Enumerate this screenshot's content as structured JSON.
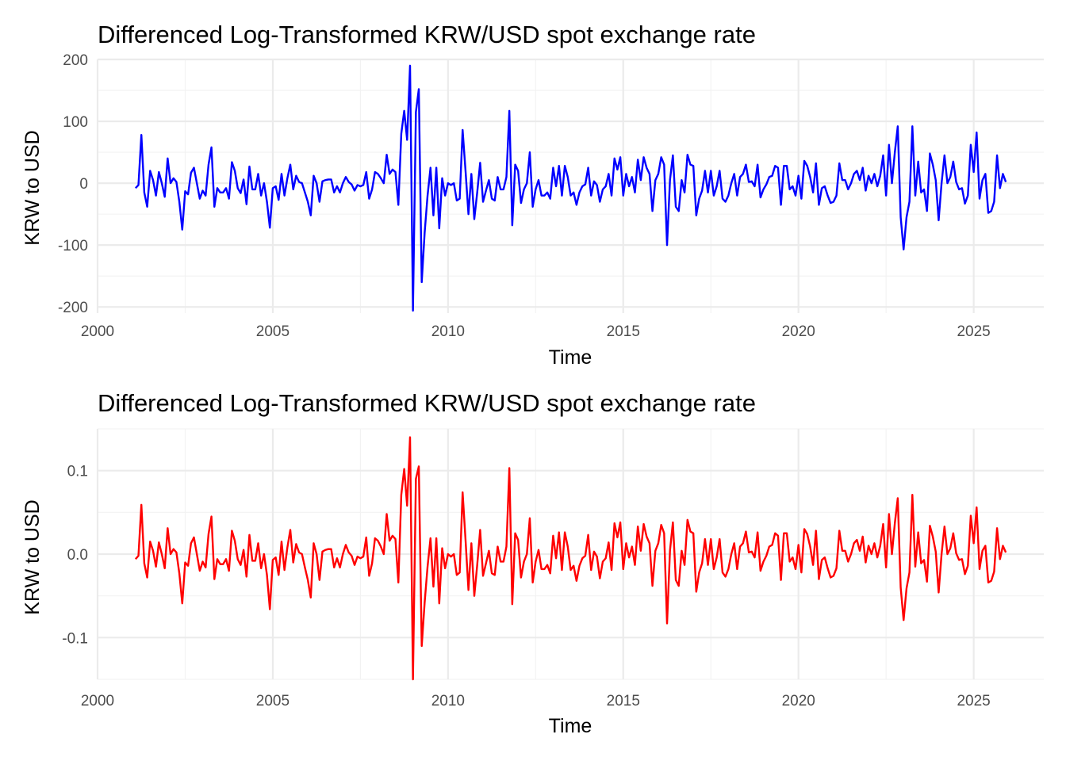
{
  "chart_data": [
    {
      "type": "line",
      "title": "Differenced Log-Transformed KRW/USD spot exchange rate",
      "xlabel": "Time",
      "ylabel": "KRW to USD",
      "xlim": [
        2000,
        2027
      ],
      "ylim": [
        -210,
        200
      ],
      "x_ticks": [
        2000,
        2005,
        2010,
        2015,
        2020,
        2025
      ],
      "x_tick_labels": [
        "2000",
        "2005",
        "2010",
        "2015",
        "2020",
        "2025"
      ],
      "y_ticks": [
        -200,
        -100,
        0,
        100,
        200
      ],
      "y_tick_labels": [
        "-200",
        "-100",
        "0",
        "100",
        "200"
      ],
      "y_minor_ticks": [
        -150,
        -50,
        50,
        150
      ],
      "x_minor_ticks": [
        2002.5,
        2007.5,
        2012.5,
        2017.5,
        2022.5
      ],
      "grid": true,
      "series": [
        {
          "color": "#0000ff",
          "x_start": 2001.0833,
          "x_step": 0.083333,
          "values": [
            -8,
            -3,
            78,
            -15,
            -38,
            20,
            5,
            -20,
            18,
            0,
            -22,
            40,
            0,
            8,
            2,
            -30,
            -75,
            -13,
            -18,
            17,
            25,
            0,
            -25,
            -12,
            -20,
            30,
            58,
            -38,
            -8,
            -15,
            -15,
            -8,
            -25,
            34,
            20,
            -8,
            -16,
            6,
            -34,
            27,
            -10,
            -10,
            15,
            -20,
            0,
            -30,
            -72,
            -8,
            -5,
            -27,
            15,
            -20,
            8,
            30,
            -10,
            12,
            2,
            0,
            -15,
            -30,
            -52,
            12,
            0,
            -30,
            3,
            5,
            6,
            6,
            -15,
            -5,
            -15,
            0,
            10,
            2,
            -2,
            -12,
            -3,
            -5,
            -3,
            18,
            -25,
            -10,
            18,
            15,
            8,
            0,
            46,
            15,
            22,
            18,
            -35,
            80,
            117,
            70,
            190,
            -206,
            115,
            152,
            -160,
            -80,
            -20,
            25,
            -52,
            25,
            -73,
            8,
            -20,
            0,
            -3,
            0,
            -28,
            -25,
            86,
            20,
            -50,
            15,
            -58,
            -15,
            33,
            -30,
            -12,
            5,
            -25,
            -28,
            10,
            -10,
            -10,
            10,
            117,
            -68,
            30,
            20,
            -32,
            -10,
            0,
            50,
            -38,
            -10,
            5,
            -20,
            -20,
            -15,
            -25,
            25,
            -5,
            28,
            -20,
            28,
            10,
            -20,
            -15,
            -35,
            -15,
            -5,
            -2,
            25,
            -20,
            3,
            -3,
            -30,
            -10,
            -5,
            15,
            -20,
            40,
            22,
            42,
            -20,
            15,
            -5,
            10,
            -15,
            38,
            5,
            42,
            25,
            15,
            -45,
            5,
            15,
            42,
            30,
            -100,
            5,
            45,
            -38,
            -45,
            5,
            -15,
            46,
            30,
            28,
            -52,
            -25,
            -12,
            20,
            -15,
            20,
            -20,
            -5,
            20,
            -25,
            -30,
            -20,
            0,
            15,
            -20,
            10,
            15,
            30,
            2,
            3,
            -5,
            30,
            -23,
            -10,
            -2,
            10,
            12,
            28,
            25,
            -35,
            28,
            28,
            -10,
            -5,
            -20,
            12,
            -25,
            36,
            28,
            10,
            -15,
            32,
            -35,
            -8,
            -5,
            -20,
            -32,
            -30,
            -20,
            32,
            5,
            5,
            -10,
            0,
            15,
            20,
            5,
            25,
            -12,
            12,
            0,
            15,
            -5,
            12,
            45,
            -20,
            62,
            0,
            50,
            92,
            -55,
            -107,
            -55,
            -30,
            92,
            -20,
            35,
            -15,
            -10,
            -45,
            48,
            30,
            5,
            -60,
            0,
            45,
            0,
            10,
            35,
            2,
            -10,
            -8,
            -33,
            -20,
            62,
            18,
            82,
            -25,
            5,
            15,
            -48,
            -45,
            -30,
            45,
            -8,
            15,
            2
          ]
        }
      ]
    },
    {
      "type": "line",
      "title": "Differenced Log-Transformed KRW/USD spot exchange rate",
      "xlabel": "Time",
      "ylabel": "KRW to USD",
      "xlim": [
        2000,
        2027
      ],
      "ylim": [
        -0.15,
        0.15
      ],
      "x_ticks": [
        2000,
        2005,
        2010,
        2015,
        2020,
        2025
      ],
      "x_tick_labels": [
        "2000",
        "2005",
        "2010",
        "2015",
        "2020",
        "2025"
      ],
      "y_ticks": [
        -0.1,
        0.0,
        0.1
      ],
      "y_tick_labels": [
        "-0.1",
        "0.0",
        "0.1"
      ],
      "y_minor_ticks": [
        -0.15,
        -0.05,
        0.05,
        0.15
      ],
      "x_minor_ticks": [
        2002.5,
        2007.5,
        2012.5,
        2017.5,
        2022.5
      ],
      "grid": true,
      "series": [
        {
          "color": "#ff0000",
          "x_start": 2001.0833,
          "x_step": 0.083333,
          "values": [
            -0.006,
            -0.002,
            0.059,
            -0.011,
            -0.028,
            0.015,
            0.004,
            -0.015,
            0.014,
            0.0,
            -0.017,
            0.031,
            0.0,
            0.006,
            0.002,
            -0.023,
            -0.059,
            -0.01,
            -0.014,
            0.013,
            0.02,
            0.0,
            -0.02,
            -0.009,
            -0.016,
            0.024,
            0.045,
            -0.03,
            -0.006,
            -0.012,
            -0.012,
            -0.006,
            -0.02,
            0.028,
            0.016,
            -0.006,
            -0.013,
            0.005,
            -0.027,
            0.023,
            -0.008,
            -0.008,
            0.013,
            -0.017,
            0.0,
            -0.025,
            -0.066,
            -0.007,
            -0.004,
            -0.025,
            0.015,
            -0.019,
            0.008,
            0.029,
            -0.01,
            0.012,
            0.002,
            0.0,
            -0.016,
            -0.031,
            -0.052,
            0.013,
            0.0,
            -0.031,
            0.003,
            0.005,
            0.006,
            0.006,
            -0.016,
            -0.005,
            -0.016,
            0.0,
            0.011,
            0.002,
            -0.002,
            -0.013,
            -0.003,
            -0.005,
            -0.003,
            0.02,
            -0.026,
            -0.011,
            0.019,
            0.016,
            0.009,
            0.0,
            0.048,
            0.016,
            0.022,
            0.018,
            -0.034,
            0.071,
            0.102,
            0.058,
            0.14,
            -0.15,
            0.09,
            0.105,
            -0.11,
            -0.058,
            -0.015,
            0.019,
            -0.039,
            0.019,
            -0.059,
            0.007,
            -0.017,
            0.0,
            -0.003,
            0.0,
            -0.025,
            -0.022,
            0.074,
            0.017,
            -0.043,
            0.013,
            -0.05,
            -0.013,
            0.029,
            -0.026,
            -0.011,
            0.004,
            -0.023,
            -0.025,
            0.009,
            -0.009,
            -0.009,
            0.009,
            0.103,
            -0.06,
            0.025,
            0.017,
            -0.028,
            -0.009,
            0.0,
            0.043,
            -0.034,
            -0.009,
            0.005,
            -0.018,
            -0.018,
            -0.013,
            -0.023,
            0.022,
            -0.005,
            0.026,
            -0.019,
            0.026,
            0.009,
            -0.019,
            -0.014,
            -0.032,
            -0.014,
            -0.005,
            -0.002,
            0.023,
            -0.019,
            0.003,
            -0.003,
            -0.029,
            -0.009,
            -0.005,
            0.014,
            -0.019,
            0.037,
            0.02,
            0.038,
            -0.018,
            0.013,
            -0.004,
            0.009,
            -0.013,
            0.033,
            0.004,
            0.036,
            0.021,
            0.013,
            -0.038,
            0.004,
            0.013,
            0.035,
            0.025,
            -0.083,
            0.004,
            0.038,
            -0.031,
            -0.038,
            0.004,
            -0.013,
            0.041,
            0.027,
            0.025,
            -0.045,
            -0.022,
            -0.011,
            0.018,
            -0.013,
            0.018,
            -0.018,
            -0.004,
            0.018,
            -0.022,
            -0.027,
            -0.018,
            0.0,
            0.013,
            -0.018,
            0.009,
            0.013,
            0.027,
            0.002,
            0.003,
            -0.004,
            0.026,
            -0.02,
            -0.009,
            -0.002,
            0.009,
            0.011,
            0.025,
            0.022,
            -0.031,
            0.025,
            0.025,
            -0.009,
            -0.004,
            -0.018,
            0.011,
            -0.022,
            0.03,
            0.024,
            0.009,
            -0.013,
            0.028,
            -0.03,
            -0.007,
            -0.004,
            -0.017,
            -0.028,
            -0.026,
            -0.017,
            0.028,
            0.004,
            0.004,
            -0.009,
            0.0,
            0.013,
            0.017,
            0.004,
            0.021,
            -0.01,
            0.01,
            0.0,
            0.013,
            -0.004,
            0.01,
            0.036,
            -0.016,
            0.048,
            0.0,
            0.037,
            0.067,
            -0.04,
            -0.079,
            -0.041,
            -0.022,
            0.071,
            -0.015,
            0.026,
            -0.011,
            -0.007,
            -0.033,
            0.034,
            0.021,
            0.003,
            -0.046,
            0.0,
            0.033,
            0.0,
            0.007,
            0.025,
            0.001,
            -0.007,
            -0.006,
            -0.024,
            -0.014,
            0.046,
            0.013,
            0.056,
            -0.018,
            0.004,
            0.01,
            -0.034,
            -0.032,
            -0.021,
            0.031,
            -0.006,
            0.01,
            0.002
          ]
        }
      ]
    }
  ]
}
